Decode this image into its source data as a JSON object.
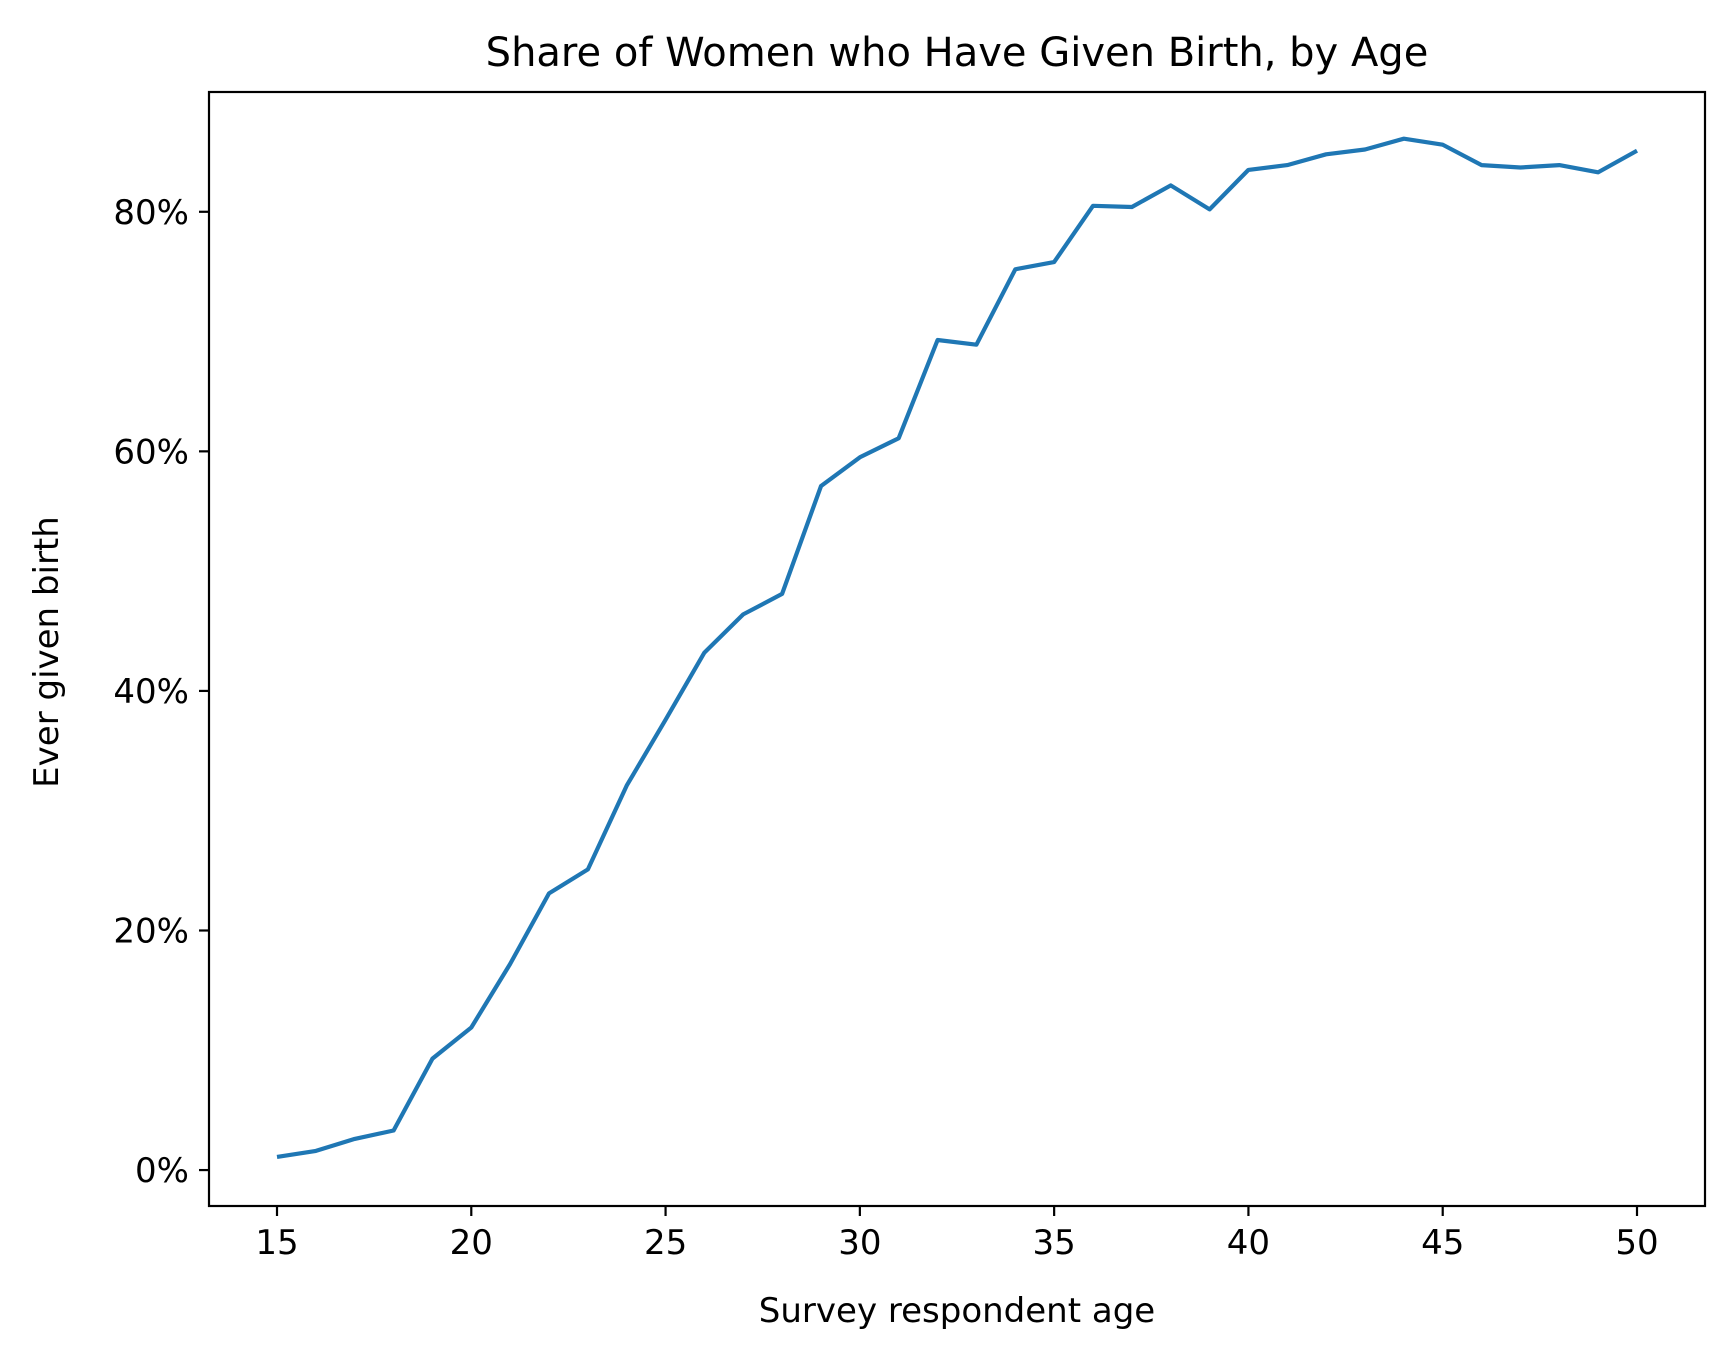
{
  "chart_data": {
    "type": "line",
    "title": "Share of Women who Have Given Birth, by Age",
    "xlabel": "Survey respondent age",
    "ylabel": "Ever given birth",
    "xlim": [
      13.25,
      51.75
    ],
    "ylim": [
      -0.03,
      0.9
    ],
    "xticks": [
      15,
      20,
      25,
      30,
      35,
      40,
      45,
      50
    ],
    "xtick_labels": [
      "15",
      "20",
      "25",
      "30",
      "35",
      "40",
      "45",
      "50"
    ],
    "yticks": [
      0,
      0.2,
      0.4,
      0.6,
      0.8
    ],
    "ytick_labels": [
      "0%",
      "20%",
      "40%",
      "60%",
      "80%"
    ],
    "grid": false,
    "series": [
      {
        "color": "#1f77b4",
        "x": [
          15,
          16,
          17,
          18,
          19,
          20,
          21,
          22,
          23,
          24,
          25,
          26,
          27,
          28,
          29,
          30,
          31,
          32,
          33,
          34,
          35,
          36,
          37,
          38,
          39,
          40,
          41,
          42,
          43,
          44,
          45,
          46,
          47,
          48,
          49,
          50
        ],
        "y": [
          0.011,
          0.016,
          0.026,
          0.033,
          0.093,
          0.119,
          0.172,
          0.231,
          0.251,
          0.321,
          0.376,
          0.432,
          0.464,
          0.481,
          0.571,
          0.595,
          0.611,
          0.693,
          0.689,
          0.752,
          0.758,
          0.805,
          0.804,
          0.822,
          0.802,
          0.835,
          0.839,
          0.848,
          0.852,
          0.861,
          0.856,
          0.839,
          0.837,
          0.839,
          0.833,
          0.851
        ]
      }
    ]
  }
}
